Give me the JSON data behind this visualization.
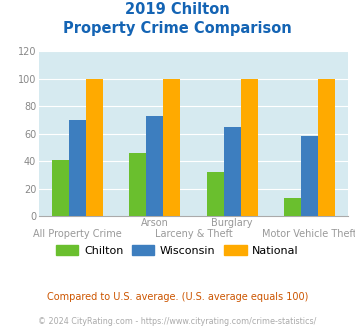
{
  "title_line1": "2019 Chilton",
  "title_line2": "Property Crime Comparison",
  "chilton": [
    41,
    46,
    32,
    13
  ],
  "wisconsin": [
    70,
    73,
    65,
    58
  ],
  "national": [
    100,
    100,
    100,
    100
  ],
  "bar_colors": {
    "chilton": "#6abf2e",
    "wisconsin": "#3d7ebf",
    "national": "#ffaa00"
  },
  "ylim": [
    0,
    120
  ],
  "yticks": [
    0,
    20,
    40,
    60,
    80,
    100,
    120
  ],
  "title_color": "#1464b4",
  "background_color": "#d6eaf0",
  "grid_color": "#ffffff",
  "legend_labels": [
    "Chilton",
    "Wisconsin",
    "National"
  ],
  "top_labels": [
    [
      "Arson",
      1
    ],
    [
      "Burglary",
      2
    ]
  ],
  "bottom_labels": [
    [
      "All Property Crime",
      0
    ],
    [
      "Larceny & Theft",
      1.5
    ],
    [
      "Motor Vehicle Theft",
      3
    ]
  ],
  "footnote1": "Compared to U.S. average. (U.S. average equals 100)",
  "footnote2": "© 2024 CityRating.com - https://www.cityrating.com/crime-statistics/",
  "footnote1_color": "#cc5500",
  "footnote2_color": "#aaaaaa",
  "label_color": "#999999"
}
